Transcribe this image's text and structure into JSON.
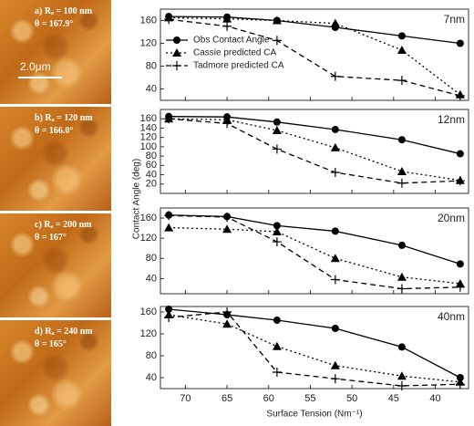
{
  "images": [
    {
      "label": "a) Rₐ = 100 nm",
      "theta": "θ = 167.9°",
      "scale_bar": "2.0μm"
    },
    {
      "label": "b) Rₐ = 120 nm",
      "theta": "θ = 166.0°"
    },
    {
      "label": "c) Rₐ = 200 nm",
      "theta": "θ = 167°"
    },
    {
      "label": "d) Rₐ = 240 nm",
      "theta": "θ = 165°"
    }
  ],
  "chart_data": [
    {
      "type": "line",
      "panel_label": "7nm",
      "legend": "center-left",
      "x": [
        72,
        65,
        59,
        52,
        44,
        37
      ],
      "xlim": [
        73,
        36
      ],
      "xticks": [
        70,
        65,
        60,
        55,
        50,
        45,
        40
      ],
      "ylim": [
        20,
        180
      ],
      "yticks": [
        40,
        80,
        120,
        160
      ],
      "series": [
        {
          "name": "Obs Contact Angle",
          "color": "#000000",
          "marker": "circle",
          "dash": "solid",
          "values": [
            167,
            166,
            160,
            148,
            133,
            120
          ]
        },
        {
          "name": "Cassie predicted CA",
          "color": "#000000",
          "marker": "triangle",
          "dash": "dotted",
          "values": [
            165,
            163,
            160,
            155,
            108,
            30
          ]
        },
        {
          "name": "Tadmore predicted CA",
          "color": "#000000",
          "marker": "plus",
          "dash": "dashed",
          "values": [
            162,
            150,
            125,
            62,
            55,
            28
          ]
        }
      ]
    },
    {
      "type": "line",
      "panel_label": "12nm",
      "ylabel": "Contact Angle (deg)",
      "x": [
        72,
        65,
        59,
        52,
        44,
        37
      ],
      "xlim": [
        73,
        36
      ],
      "xticks": [
        70,
        65,
        60,
        55,
        50,
        45,
        40
      ],
      "ylim": [
        0,
        180
      ],
      "yticks": [
        20,
        40,
        60,
        80,
        100,
        120,
        140,
        160
      ],
      "series": [
        {
          "color": "#000000",
          "marker": "circle",
          "dash": "solid",
          "values": [
            165,
            164,
            153,
            137,
            115,
            85
          ]
        },
        {
          "color": "#000000",
          "marker": "triangle",
          "dash": "dotted",
          "values": [
            160,
            158,
            135,
            98,
            47,
            28
          ]
        },
        {
          "color": "#000000",
          "marker": "plus",
          "dash": "dashed",
          "values": [
            160,
            150,
            95,
            45,
            22,
            27
          ]
        }
      ]
    },
    {
      "type": "line",
      "panel_label": "20nm",
      "x": [
        72,
        65,
        59,
        52,
        44,
        37
      ],
      "xlim": [
        73,
        36
      ],
      "xticks": [
        70,
        65,
        60,
        55,
        50,
        45,
        40
      ],
      "ylim": [
        10,
        180
      ],
      "yticks": [
        40,
        80,
        120,
        160
      ],
      "series": [
        {
          "color": "#000000",
          "marker": "circle",
          "dash": "solid",
          "values": [
            166,
            163,
            145,
            134,
            106,
            69
          ]
        },
        {
          "color": "#000000",
          "marker": "triangle",
          "dash": "dotted",
          "values": [
            141,
            138,
            133,
            80,
            43,
            30
          ]
        },
        {
          "color": "#000000",
          "marker": "plus",
          "dash": "dashed",
          "values": [
            165,
            162,
            113,
            38,
            20,
            23
          ]
        }
      ]
    },
    {
      "type": "line",
      "panel_label": "40nm",
      "xlabel": "Surface Tension (Nm⁻¹)",
      "x": [
        72,
        65,
        59,
        52,
        44,
        37
      ],
      "xlim": [
        73,
        36
      ],
      "xticks": [
        70,
        65,
        60,
        55,
        50,
        45,
        40
      ],
      "ylim": [
        20,
        170
      ],
      "yticks": [
        40,
        80,
        120,
        160
      ],
      "series": [
        {
          "color": "#000000",
          "marker": "circle",
          "dash": "solid",
          "values": [
            165,
            155,
            145,
            130,
            96,
            40
          ]
        },
        {
          "color": "#000000",
          "marker": "triangle",
          "dash": "dotted",
          "values": [
            155,
            138,
            97,
            62,
            43,
            32
          ]
        },
        {
          "color": "#000000",
          "marker": "plus",
          "dash": "dashed",
          "values": [
            150,
            160,
            50,
            38,
            25,
            28
          ]
        }
      ]
    }
  ]
}
